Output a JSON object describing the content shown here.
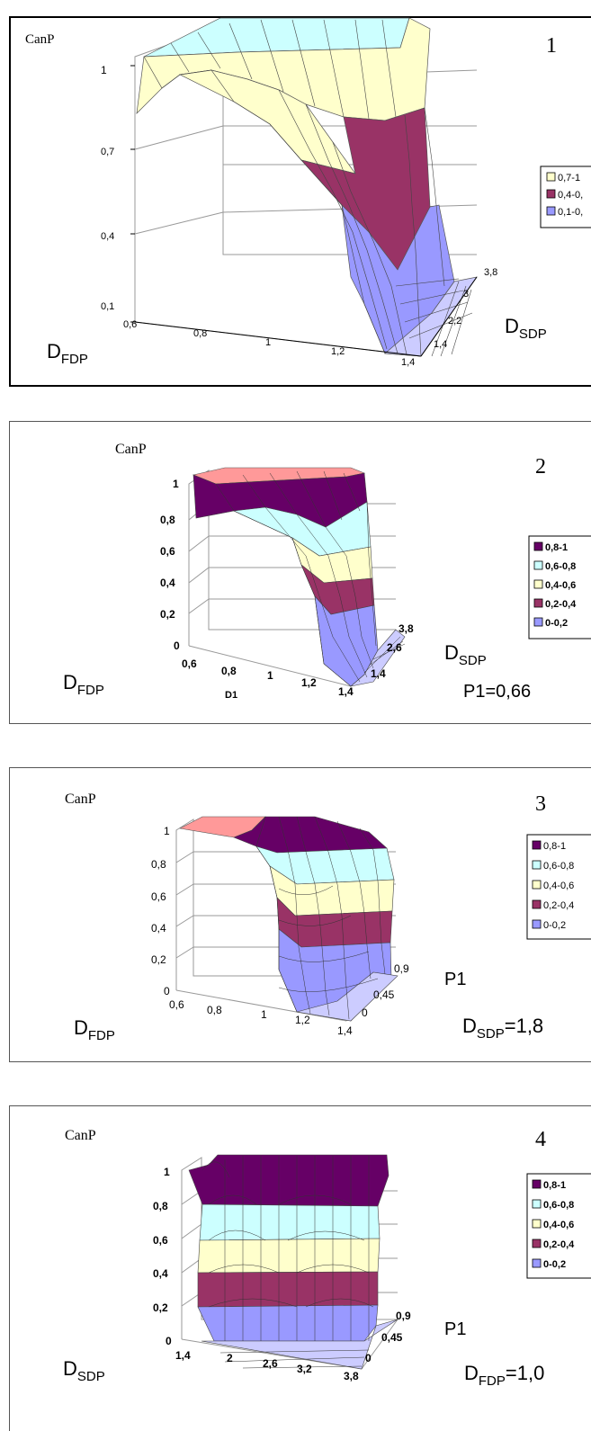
{
  "chart_data": [
    {
      "type": "surface",
      "panel_number": "1",
      "z_label": "CanP",
      "x_label_main": "D",
      "x_label_sub": "FDP",
      "y_label_main": "D",
      "y_label_sub": "SDP",
      "z_ticks": [
        "0,1",
        "0,4",
        "0,7",
        "1"
      ],
      "x_ticks": [
        "0,6",
        "0,8",
        "1",
        "1,2",
        "1,4"
      ],
      "y_ticks": [
        "1,4",
        "2,2",
        "3",
        "3,8"
      ],
      "legend": [
        {
          "label": "0,7-1",
          "color": "#ffffcc"
        },
        {
          "label": "0,4-0,",
          "color": "#993366"
        },
        {
          "label": "0,1-0,",
          "color": "#9999ff"
        }
      ]
    },
    {
      "type": "surface",
      "panel_number": "2",
      "z_label": "CanP",
      "x_label_main": "D",
      "x_label_sub": "FDP",
      "x_axis_name": "D1",
      "y_label_main": "D",
      "y_label_sub": "SDP",
      "fixed_param": "P1=0,66",
      "z_ticks": [
        "0",
        "0,2",
        "0,4",
        "0,6",
        "0,8",
        "1"
      ],
      "x_ticks": [
        "0,6",
        "0,8",
        "1",
        "1,2",
        "1,4"
      ],
      "y_ticks": [
        "1,4",
        "2,6",
        "3,8"
      ],
      "legend": [
        {
          "label": "0,8-1",
          "color": "#660066"
        },
        {
          "label": "0,6-0,8",
          "color": "#ccffff"
        },
        {
          "label": "0,4-0,6",
          "color": "#ffffcc"
        },
        {
          "label": "0,2-0,4",
          "color": "#993366"
        },
        {
          "label": "0-0,2",
          "color": "#9999ff"
        }
      ]
    },
    {
      "type": "surface",
      "panel_number": "3",
      "z_label": "CanP",
      "x_label_main": "D",
      "x_label_sub": "FDP",
      "y_label": "P1",
      "fixed_main": "D",
      "fixed_sub": "SDP",
      "fixed_value": "=1,8",
      "z_ticks": [
        "0",
        "0,2",
        "0,4",
        "0,6",
        "0,8",
        "1"
      ],
      "x_ticks": [
        "0,6",
        "0,8",
        "1",
        "1,2",
        "1,4"
      ],
      "y_ticks": [
        "0",
        "0,45",
        "0,9"
      ],
      "legend": [
        {
          "label": "0,8-1",
          "color": "#660066"
        },
        {
          "label": "0,6-0,8",
          "color": "#ccffff"
        },
        {
          "label": "0,4-0,6",
          "color": "#ffffcc"
        },
        {
          "label": "0,2-0,4",
          "color": "#993366"
        },
        {
          "label": "0-0,2",
          "color": "#9999ff"
        }
      ]
    },
    {
      "type": "surface",
      "panel_number": "4",
      "z_label": "CanP",
      "x_label_main": "D",
      "x_label_sub": "SDP",
      "y_label": "P1",
      "fixed_main": "D",
      "fixed_sub": "FDP",
      "fixed_value": "=1,0",
      "z_ticks": [
        "0",
        "0,2",
        "0,4",
        "0,6",
        "0,8",
        "1"
      ],
      "x_ticks": [
        "1,4",
        "2",
        "2,6",
        "3,2",
        "3,8"
      ],
      "y_ticks": [
        "0",
        "0,45",
        "0,9"
      ],
      "legend": [
        {
          "label": "0,8-1",
          "color": "#660066"
        },
        {
          "label": "0,6-0,8",
          "color": "#ccffff"
        },
        {
          "label": "0,4-0,6",
          "color": "#ffffcc"
        },
        {
          "label": "0,2-0,4",
          "color": "#993366"
        },
        {
          "label": "0-0,2",
          "color": "#9999ff"
        }
      ]
    }
  ]
}
